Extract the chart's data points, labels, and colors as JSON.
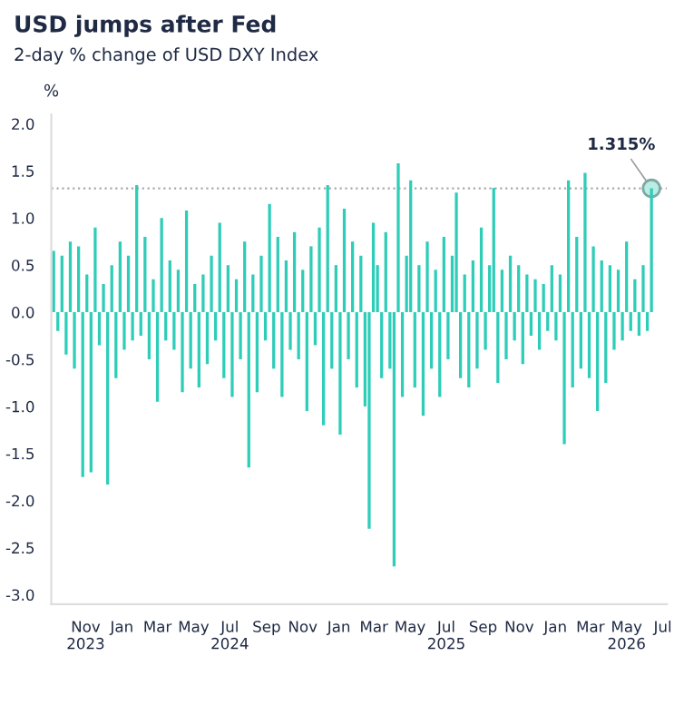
{
  "chart_data": {
    "type": "bar",
    "title": "USD jumps after Fed",
    "subtitle": "2-day % change of USD DXY Index",
    "ylabel": "%",
    "x": [
      "2023-09-08",
      "2023-09-15",
      "2023-09-22",
      "2023-09-29",
      "2023-10-06",
      "2023-10-13",
      "2023-10-20",
      "2023-10-27",
      "2023-11-03",
      "2023-11-10",
      "2023-11-17",
      "2023-11-24",
      "2023-12-01",
      "2023-12-08",
      "2023-12-15",
      "2023-12-22",
      "2023-12-29",
      "2024-01-05",
      "2024-01-12",
      "2024-01-19",
      "2024-01-26",
      "2024-02-02",
      "2024-02-09",
      "2024-02-16",
      "2024-02-23",
      "2024-03-01",
      "2024-03-08",
      "2024-03-15",
      "2024-03-22",
      "2024-03-29",
      "2024-04-05",
      "2024-04-12",
      "2024-04-19",
      "2024-04-26",
      "2024-05-03",
      "2024-05-10",
      "2024-05-17",
      "2024-05-24",
      "2024-05-31",
      "2024-06-07",
      "2024-06-14",
      "2024-06-21",
      "2024-06-28",
      "2024-07-05",
      "2024-07-12",
      "2024-07-19",
      "2024-07-26",
      "2024-08-02",
      "2024-08-09",
      "2024-08-16",
      "2024-08-23",
      "2024-08-30",
      "2024-09-06",
      "2024-09-13",
      "2024-09-20",
      "2024-09-27",
      "2024-10-04",
      "2024-10-11",
      "2024-10-18",
      "2024-10-25",
      "2024-11-01",
      "2024-11-08",
      "2024-11-15",
      "2024-11-22",
      "2024-11-29",
      "2024-12-06",
      "2024-12-13",
      "2024-12-20",
      "2024-12-27",
      "2025-01-03",
      "2025-01-10",
      "2025-01-17",
      "2025-01-24",
      "2025-01-31",
      "2025-02-07",
      "2025-02-14",
      "2025-02-21",
      "2025-02-28",
      "2025-03-07",
      "2025-03-14",
      "2025-03-21",
      "2025-03-28",
      "2025-04-04",
      "2025-04-11",
      "2025-04-18",
      "2025-04-25",
      "2025-05-02",
      "2025-05-09",
      "2025-05-16",
      "2025-05-23",
      "2025-05-30",
      "2025-06-06",
      "2025-06-13",
      "2025-06-20",
      "2025-06-27",
      "2025-07-04",
      "2025-07-11",
      "2025-07-18",
      "2025-07-25",
      "2025-08-01",
      "2025-08-08",
      "2025-08-15",
      "2025-08-22",
      "2025-08-29",
      "2025-09-05",
      "2025-09-12",
      "2025-09-19",
      "2025-09-26",
      "2025-10-03",
      "2025-10-10",
      "2025-10-17",
      "2025-10-24",
      "2025-10-31",
      "2025-11-07",
      "2025-11-14",
      "2025-11-21",
      "2025-11-28",
      "2025-12-05",
      "2025-12-12",
      "2025-12-19",
      "2025-12-26",
      "2026-01-02",
      "2026-01-09",
      "2026-01-16",
      "2026-01-23",
      "2026-01-30",
      "2026-02-06",
      "2026-02-13",
      "2026-02-20",
      "2026-02-27",
      "2026-03-06",
      "2026-03-13",
      "2026-03-20",
      "2026-03-27",
      "2026-04-03",
      "2026-04-10",
      "2026-04-17",
      "2026-04-24",
      "2026-05-01",
      "2026-05-08",
      "2026-05-15",
      "2026-05-22",
      "2026-05-29",
      "2026-06-05",
      "2026-06-12"
    ],
    "series": [
      {
        "color": "#2ecdb8",
        "values": [
          0.65,
          -0.2,
          0.6,
          -0.45,
          0.75,
          -0.6,
          0.7,
          -1.75,
          0.4,
          -1.7,
          0.9,
          -0.35,
          0.3,
          -1.83,
          0.5,
          -0.7,
          0.75,
          -0.4,
          0.6,
          -0.3,
          1.35,
          -0.25,
          0.8,
          -0.5,
          0.35,
          -0.95,
          1.0,
          -0.3,
          0.55,
          -0.4,
          0.45,
          -0.85,
          1.08,
          -0.6,
          0.3,
          -0.8,
          0.4,
          -0.55,
          0.6,
          -0.3,
          0.95,
          -0.7,
          0.5,
          -0.9,
          0.35,
          -0.5,
          0.75,
          -1.65,
          0.4,
          -0.85,
          0.6,
          -0.3,
          1.15,
          -0.6,
          0.8,
          -0.9,
          0.55,
          -0.4,
          0.85,
          -0.5,
          0.45,
          -1.05,
          0.7,
          -0.35,
          0.9,
          -1.2,
          1.35,
          -0.6,
          0.5,
          -1.3,
          1.1,
          -0.5,
          0.75,
          -0.8,
          0.6,
          -1.0,
          -2.3,
          0.95,
          0.5,
          -0.7,
          0.85,
          -0.6,
          -2.7,
          1.58,
          -0.9,
          0.6,
          1.4,
          -0.8,
          0.5,
          -1.1,
          0.75,
          -0.6,
          0.45,
          -0.9,
          0.8,
          -0.5,
          0.6,
          1.27,
          -0.7,
          0.4,
          -0.8,
          0.55,
          -0.6,
          0.9,
          -0.4,
          0.5,
          1.32,
          -0.75,
          0.45,
          -0.5,
          0.6,
          -0.3,
          0.5,
          -0.55,
          0.4,
          -0.25,
          0.35,
          -0.4,
          0.3,
          -0.2,
          0.5,
          -0.3,
          0.4,
          -1.4,
          1.4,
          -0.8,
          0.8,
          -0.6,
          1.48,
          -0.7,
          0.7,
          -1.05,
          0.55,
          -0.75,
          0.5,
          -0.4,
          0.45,
          -0.3,
          0.75,
          -0.2,
          0.35,
          -0.25,
          0.5,
          -0.2,
          1.315
        ]
      }
    ],
    "xlim": [
      "2023-09-04",
      "2026-07-08"
    ],
    "xticks": [
      {
        "value": "2023-11-01",
        "label": "Nov\n2023"
      },
      {
        "value": "2024-01-01",
        "label": "Jan"
      },
      {
        "value": "2024-03-01",
        "label": "Mar"
      },
      {
        "value": "2024-05-01",
        "label": "May"
      },
      {
        "value": "2024-07-01",
        "label": "Jul\n2024"
      },
      {
        "value": "2024-09-01",
        "label": "Sep"
      },
      {
        "value": "2024-11-01",
        "label": "Nov"
      },
      {
        "value": "2025-01-01",
        "label": "Jan"
      },
      {
        "value": "2025-03-01",
        "label": "Mar"
      },
      {
        "value": "2025-05-01",
        "label": "May"
      },
      {
        "value": "2025-07-01",
        "label": "Jul\n2025"
      },
      {
        "value": "2025-09-01",
        "label": "Sep"
      },
      {
        "value": "2025-11-01",
        "label": "Nov"
      },
      {
        "value": "2026-01-01",
        "label": "Jan"
      },
      {
        "value": "2026-03-01",
        "label": "Mar"
      },
      {
        "value": "2026-05-01",
        "label": "May\n2026"
      },
      {
        "value": "2026-07-01",
        "label": "Jul"
      }
    ],
    "ylim": [
      -3.1,
      2.1
    ],
    "yticks": [
      {
        "value": -3,
        "label": "-3.0"
      },
      -2.5,
      {
        "value": -2,
        "label": "-2.0"
      },
      -1.5,
      {
        "value": -1,
        "label": "-1.0"
      },
      -0.5,
      {
        "value": 0,
        "label": "0.0"
      },
      0.5,
      {
        "value": 1,
        "label": "1.0"
      },
      1.5,
      {
        "value": 2,
        "label": "2.0"
      }
    ],
    "ref_lines": [
      {
        "axis": "y",
        "value": 1.315,
        "color": "#aaaaaa",
        "line_style": "dotted"
      }
    ],
    "annotations": [
      {
        "text": "1.315%",
        "x": "2026-06-12",
        "y": 1.315
      }
    ],
    "grid": false
  }
}
